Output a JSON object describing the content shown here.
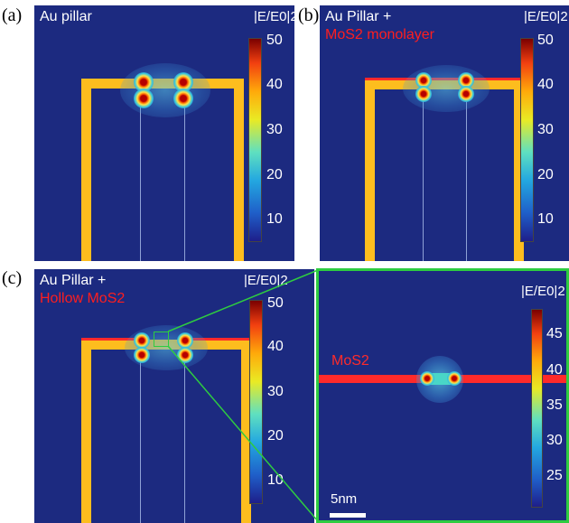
{
  "panel_a": {
    "tag": "(a)",
    "title": "Au pillar",
    "cbar_title": "|E/E0|2",
    "ticks": [
      "50",
      "40",
      "30",
      "20",
      "10"
    ]
  },
  "panel_b": {
    "tag": "(b)",
    "title": "Au Pillar +",
    "title_red": "MoS2 monolayer",
    "cbar_title": "|E/E0|2",
    "ticks": [
      "50",
      "40",
      "30",
      "20",
      "10"
    ]
  },
  "panel_c": {
    "tag": "(c)",
    "title": "Au Pillar +",
    "title_red": "Hollow MoS2",
    "cbar_title": "|E/E0|2",
    "ticks": [
      "50",
      "40",
      "30",
      "20",
      "10"
    ]
  },
  "panel_d": {
    "cbar_title": "|E/E0|2",
    "mos2_label": "MoS2",
    "ticks": [
      "45",
      "40",
      "35",
      "30",
      "25"
    ],
    "scale_bar": "5nm"
  },
  "colors": {
    "background": "#1c2a80",
    "gold": "#fdbd1e",
    "mos2": "#ff2a2a",
    "zoom_frame": "#2ecc40"
  }
}
